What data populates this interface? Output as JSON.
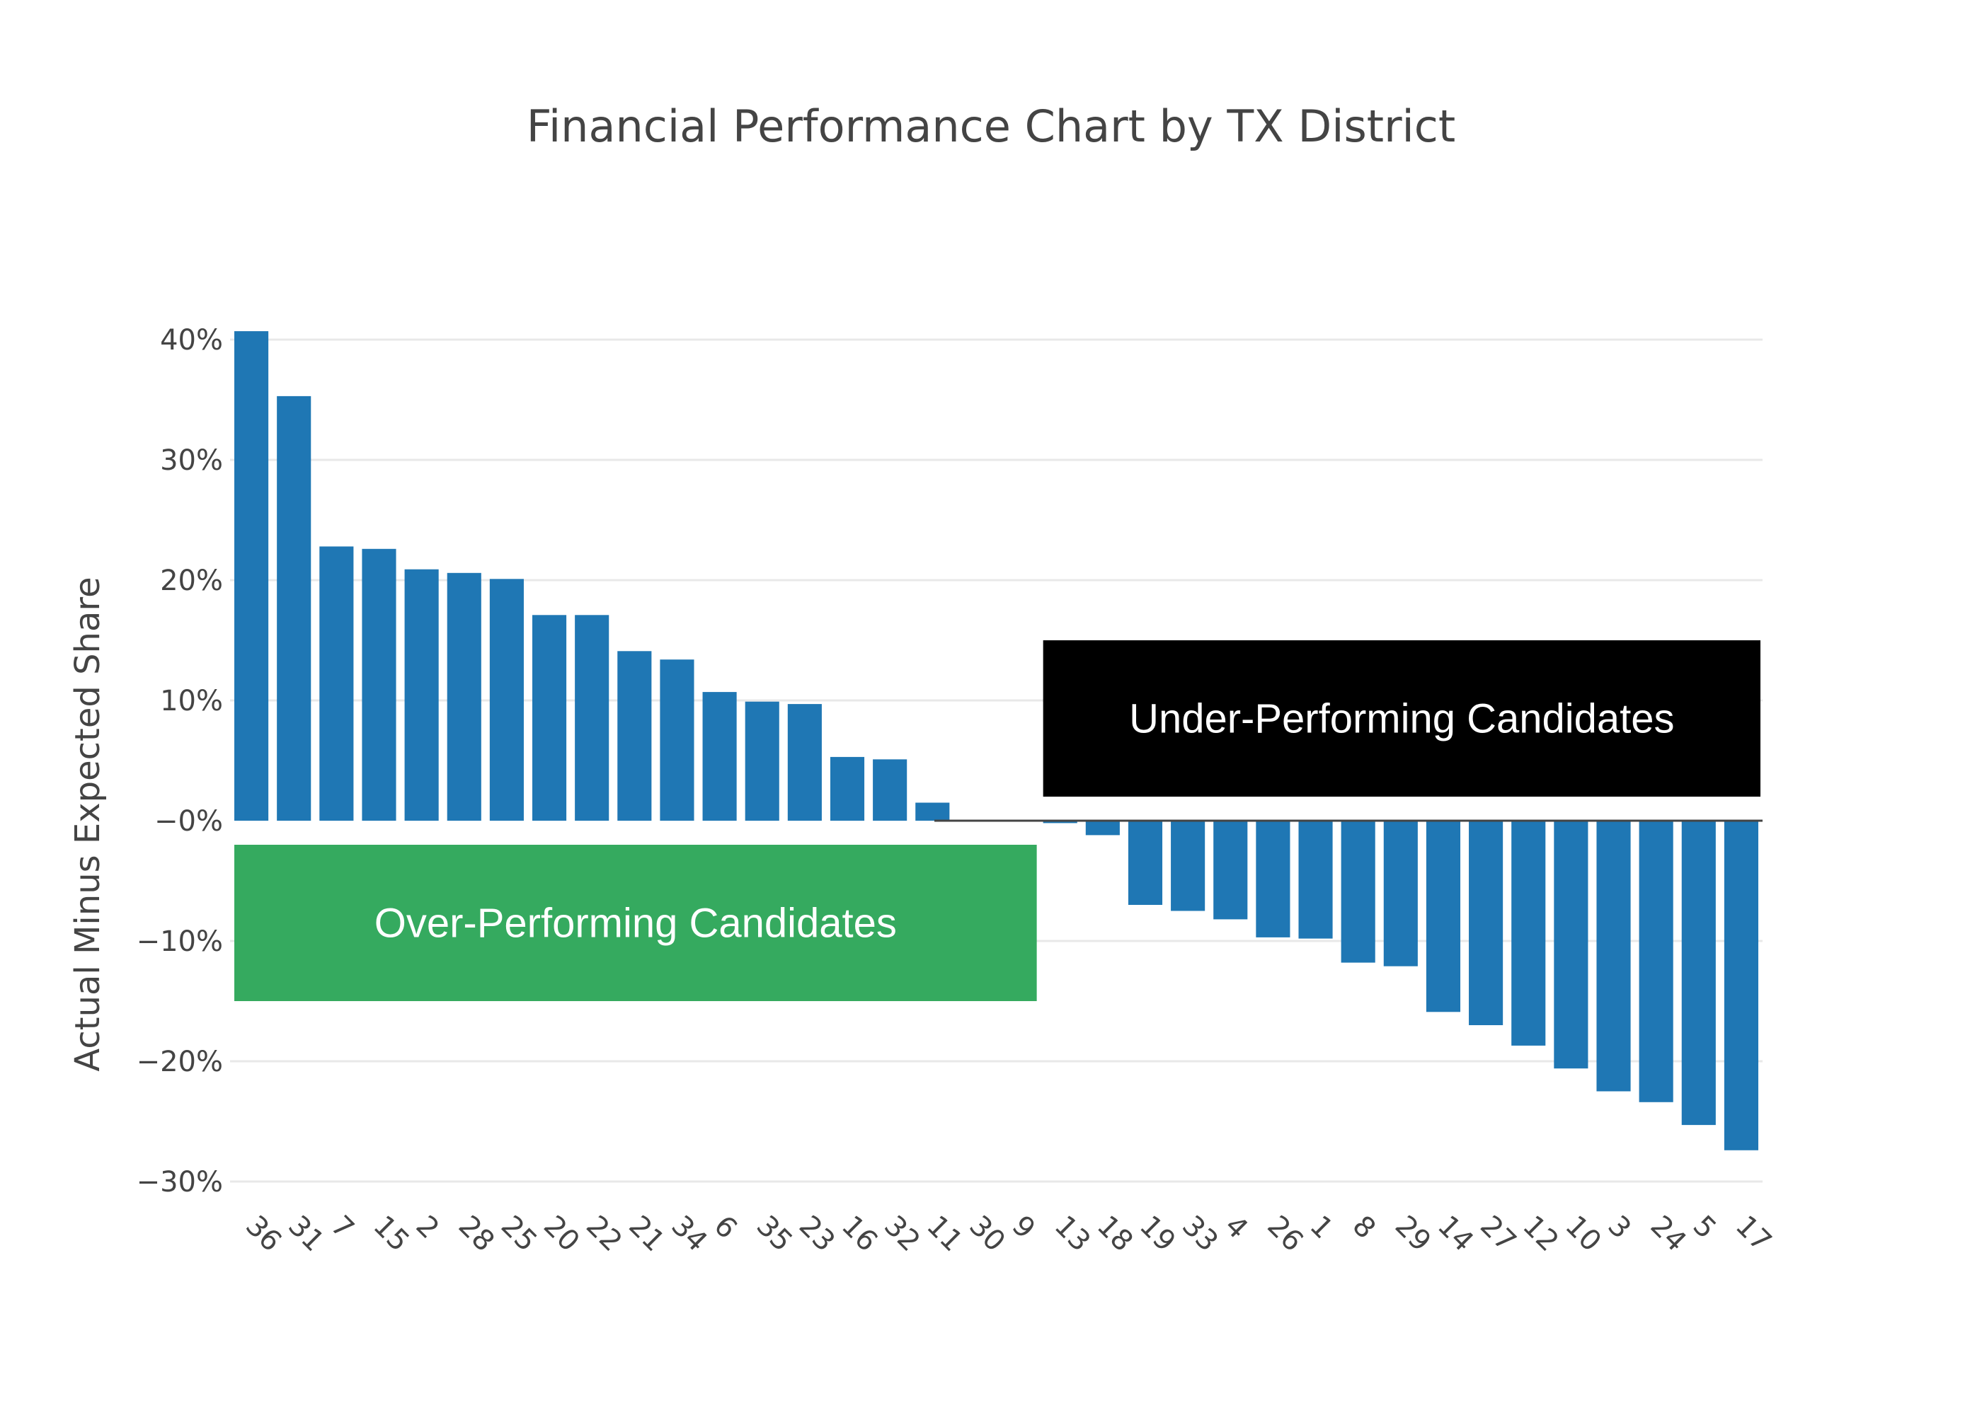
{
  "chart_data": {
    "type": "bar",
    "title": "Financial Performance Chart by TX District",
    "xlabel": "",
    "ylabel": "Actual Minus Expected Share",
    "ylim": [
      -32,
      42
    ],
    "yticks": [
      40,
      30,
      20,
      10,
      0,
      -10,
      -20,
      -30
    ],
    "ytick_labels": [
      "40%",
      "30%",
      "20%",
      "10%",
      "−0%",
      "−10%",
      "−20%",
      "−30%"
    ],
    "bar_color": "#1f77b4",
    "grid": true,
    "categories": [
      "36",
      "31",
      "7",
      "15",
      "2",
      "28",
      "25",
      "20",
      "22",
      "21",
      "34",
      "6",
      "35",
      "23",
      "16",
      "32",
      "11",
      "30",
      "9",
      "13",
      "18",
      "19",
      "33",
      "4",
      "26",
      "1",
      "8",
      "29",
      "14",
      "27",
      "12",
      "10",
      "3",
      "24",
      "5",
      "17"
    ],
    "values": [
      40.7,
      35.3,
      22.8,
      22.6,
      20.9,
      20.6,
      20.1,
      17.1,
      17.1,
      14.1,
      13.4,
      10.7,
      9.9,
      9.7,
      5.3,
      5.1,
      1.5,
      0,
      0,
      -0.2,
      -1.2,
      -7.0,
      -7.5,
      -8.2,
      -9.7,
      -9.8,
      -11.8,
      -12.1,
      -15.9,
      -17.0,
      -18.7,
      -20.6,
      -22.5,
      -23.4,
      -25.3,
      -27.4
    ],
    "annotations": [
      {
        "text": "Over-Performing Candidates",
        "bgcolor": "#35aa5f",
        "textcolor": "#ffffff",
        "y_top": -2,
        "y_bottom": -15,
        "cat_start": 0,
        "cat_end": 18
      },
      {
        "text": "Under-Performing Candidates",
        "bgcolor": "#000000",
        "textcolor": "#ffffff",
        "y_top": 15,
        "y_bottom": 2,
        "cat_start": 19,
        "cat_end": 35
      }
    ]
  }
}
